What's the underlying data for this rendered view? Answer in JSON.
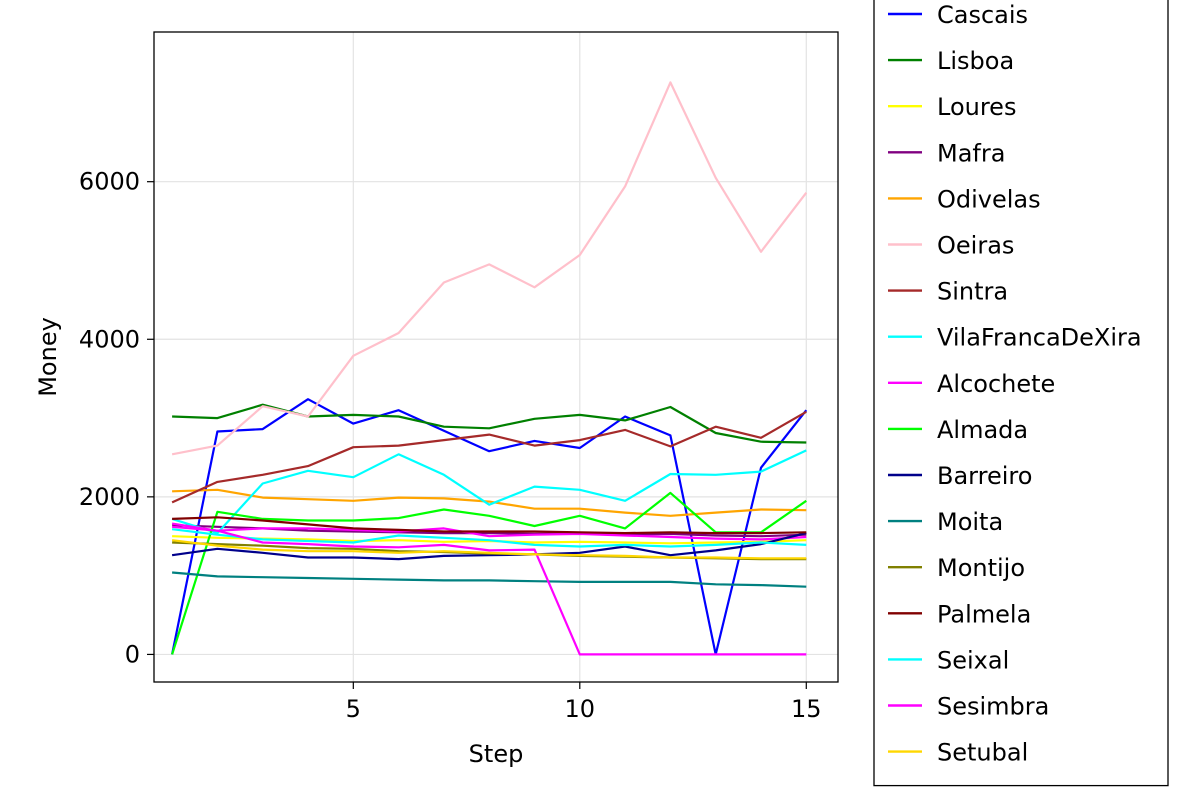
{
  "chart_data": {
    "type": "line",
    "xlabel": "Step",
    "ylabel": "Money",
    "xlim": [
      0.6,
      15.7
    ],
    "ylim": [
      -350,
      7900
    ],
    "xticks": [
      5,
      10,
      15
    ],
    "yticks": [
      0,
      2000,
      4000,
      6000
    ],
    "grid": true,
    "legend_position": "right",
    "x": [
      1,
      2,
      3,
      4,
      5,
      6,
      7,
      8,
      9,
      10,
      11,
      12,
      13,
      14,
      15
    ],
    "series": [
      {
        "name": "Cascais",
        "color": "#0000ff",
        "values": [
          0,
          2830,
          2860,
          3240,
          2930,
          3100,
          2840,
          2580,
          2710,
          2620,
          3020,
          2780,
          0,
          2370,
          3100
        ]
      },
      {
        "name": "Lisboa",
        "color": "#008000",
        "values": [
          3020,
          3000,
          3170,
          3020,
          3040,
          3020,
          2890,
          2870,
          2990,
          3040,
          2970,
          3140,
          2810,
          2700,
          2690
        ]
      },
      {
        "name": "Loures",
        "color": "#ffff00",
        "values": [
          1500,
          1480,
          1470,
          1460,
          1440,
          1450,
          1430,
          1440,
          1420,
          1430,
          1420,
          1410,
          1420,
          1430,
          1450
        ]
      },
      {
        "name": "Mafra",
        "color": "#800080",
        "values": [
          1640,
          1620,
          1600,
          1570,
          1560,
          1550,
          1540,
          1540,
          1530,
          1540,
          1520,
          1530,
          1510,
          1500,
          1520
        ]
      },
      {
        "name": "Odivelas",
        "color": "#ffa500",
        "values": [
          2070,
          2090,
          1990,
          1970,
          1950,
          1990,
          1980,
          1940,
          1850,
          1850,
          1800,
          1760,
          1800,
          1840,
          1830
        ]
      },
      {
        "name": "Oeiras",
        "color": "#ffc0cb",
        "values": [
          2540,
          2650,
          3150,
          3020,
          3790,
          4080,
          4720,
          4950,
          4660,
          5070,
          5940,
          7260,
          6050,
          5110,
          5860
        ]
      },
      {
        "name": "Sintra",
        "color": "#a52a2a",
        "values": [
          1930,
          2190,
          2280,
          2390,
          2630,
          2650,
          2720,
          2790,
          2650,
          2720,
          2850,
          2640,
          2890,
          2750,
          3080
        ]
      },
      {
        "name": "VilaFrancaDeXira",
        "color": "#00ffff",
        "values": [
          1720,
          1540,
          2170,
          2330,
          2250,
          2540,
          2280,
          1900,
          2130,
          2090,
          1950,
          2290,
          2280,
          2320,
          2590
        ]
      },
      {
        "name": "Alcochete",
        "color": "#ff00ff",
        "values": [
          1660,
          1570,
          1600,
          1600,
          1580,
          1560,
          1600,
          1500,
          1520,
          1530,
          1510,
          1490,
          1470,
          1460,
          1490
        ]
      },
      {
        "name": "Almada",
        "color": "#00ff00",
        "values": [
          0,
          1810,
          1720,
          1700,
          1700,
          1730,
          1840,
          1760,
          1630,
          1760,
          1600,
          2050,
          1550,
          1550,
          1950
        ]
      },
      {
        "name": "Barreiro",
        "color": "#00008b",
        "values": [
          1260,
          1340,
          1290,
          1230,
          1230,
          1210,
          1250,
          1260,
          1270,
          1290,
          1370,
          1260,
          1320,
          1400,
          1540
        ]
      },
      {
        "name": "Moita",
        "color": "#008080",
        "values": [
          1040,
          990,
          980,
          970,
          960,
          950,
          940,
          940,
          930,
          920,
          920,
          920,
          890,
          880,
          860
        ]
      },
      {
        "name": "Montijo",
        "color": "#808000",
        "values": [
          1420,
          1400,
          1380,
          1350,
          1340,
          1310,
          1300,
          1280,
          1270,
          1250,
          1240,
          1230,
          1220,
          1210,
          1210
        ]
      },
      {
        "name": "Palmela",
        "color": "#800000",
        "values": [
          1720,
          1740,
          1700,
          1650,
          1600,
          1580,
          1560,
          1560,
          1560,
          1550,
          1540,
          1550,
          1540,
          1540,
          1550
        ]
      },
      {
        "name": "Seixal",
        "color": "#00ffff",
        "values": [
          1590,
          1520,
          1460,
          1440,
          1420,
          1510,
          1480,
          1450,
          1390,
          1370,
          1390,
          1370,
          1390,
          1420,
          1390
        ]
      },
      {
        "name": "Sesimbra",
        "color": "#ff00ff",
        "values": [
          1620,
          1570,
          1420,
          1400,
          1370,
          1360,
          1390,
          1320,
          1330,
          0,
          0,
          0,
          0,
          0,
          0
        ]
      },
      {
        "name": "Setubal",
        "color": "#ffd700",
        "values": [
          1450,
          1380,
          1330,
          1310,
          1310,
          1290,
          1310,
          1290,
          1270,
          1260,
          1250,
          1230,
          1230,
          1220,
          1220
        ]
      }
    ]
  }
}
